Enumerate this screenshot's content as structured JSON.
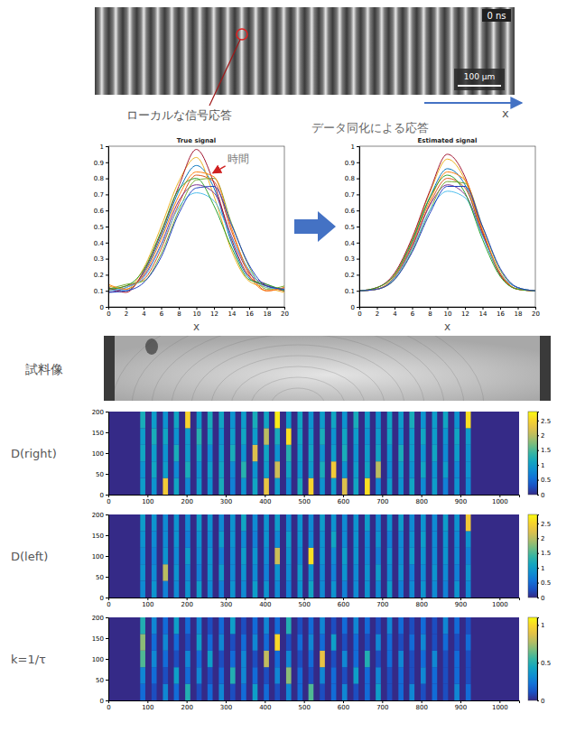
{
  "figure": {
    "stripe_image": {
      "time_label": "0 ns",
      "scale_label": "100 μm"
    },
    "local_label": "ローカルな信号応答",
    "assim_label": "データ同化による応答",
    "x_arrow_label": "x",
    "sample_label": "試料像"
  },
  "chart_data": [
    {
      "type": "line",
      "title": "True signal",
      "xlabel": "x",
      "x": [
        0,
        2,
        4,
        6,
        8,
        10,
        12,
        14,
        16,
        18,
        20
      ],
      "xlim": [
        0,
        20
      ],
      "xticks": [
        0,
        2,
        4,
        6,
        8,
        10,
        12,
        14,
        16,
        18,
        20
      ],
      "ylim": [
        0,
        1
      ],
      "yticks": [
        0,
        0.1,
        0.2,
        0.3,
        0.4,
        0.5,
        0.6,
        0.7,
        0.8,
        0.9,
        1
      ],
      "annotations": [
        "時間"
      ],
      "series": [
        {
          "color": "#0072bd",
          "values": [
            0.12,
            0.1,
            0.21,
            0.44,
            0.72,
            0.88,
            0.74,
            0.4,
            0.18,
            0.13,
            0.11
          ]
        },
        {
          "color": "#d95319",
          "values": [
            0.1,
            0.13,
            0.17,
            0.36,
            0.64,
            0.82,
            0.78,
            0.47,
            0.22,
            0.1,
            0.12
          ]
        },
        {
          "color": "#edb120",
          "values": [
            0.13,
            0.11,
            0.24,
            0.5,
            0.78,
            0.93,
            0.69,
            0.35,
            0.16,
            0.12,
            0.09
          ]
        },
        {
          "color": "#7e2f8e",
          "values": [
            0.09,
            0.12,
            0.19,
            0.39,
            0.66,
            0.76,
            0.71,
            0.44,
            0.21,
            0.14,
            0.1
          ]
        },
        {
          "color": "#77ac30",
          "values": [
            0.11,
            0.14,
            0.16,
            0.33,
            0.6,
            0.79,
            0.8,
            0.52,
            0.25,
            0.11,
            0.13
          ]
        },
        {
          "color": "#a2142f",
          "values": [
            0.12,
            0.09,
            0.22,
            0.46,
            0.75,
            0.98,
            0.77,
            0.42,
            0.19,
            0.13,
            0.1
          ]
        },
        {
          "color": "#4dbeee",
          "values": [
            0.1,
            0.12,
            0.18,
            0.38,
            0.62,
            0.71,
            0.66,
            0.43,
            0.23,
            0.12,
            0.11
          ]
        },
        {
          "color": "#ff7f0e",
          "values": [
            0.14,
            0.11,
            0.2,
            0.42,
            0.69,
            0.84,
            0.81,
            0.49,
            0.2,
            0.1,
            0.12
          ]
        },
        {
          "color": "#2ca02c",
          "values": [
            0.11,
            0.13,
            0.23,
            0.47,
            0.73,
            0.8,
            0.63,
            0.37,
            0.17,
            0.14,
            0.1
          ]
        },
        {
          "color": "#1f3fbf",
          "values": [
            0.09,
            0.1,
            0.15,
            0.31,
            0.58,
            0.74,
            0.75,
            0.51,
            0.26,
            0.13,
            0.11
          ]
        }
      ]
    },
    {
      "type": "line",
      "title": "Estimated signal",
      "xlabel": "x",
      "x": [
        0,
        2,
        4,
        6,
        8,
        10,
        12,
        14,
        16,
        18,
        20
      ],
      "xlim": [
        0,
        20
      ],
      "xticks": [
        0,
        2,
        4,
        6,
        8,
        10,
        12,
        14,
        16,
        18,
        20
      ],
      "ylim": [
        0,
        1
      ],
      "yticks": [
        0,
        0.1,
        0.2,
        0.3,
        0.4,
        0.5,
        0.6,
        0.7,
        0.8,
        0.9,
        1
      ],
      "series": [
        {
          "color": "#0072bd",
          "values": [
            0.1,
            0.11,
            0.19,
            0.4,
            0.68,
            0.86,
            0.76,
            0.45,
            0.2,
            0.11,
            0.1
          ]
        },
        {
          "color": "#d95319",
          "values": [
            0.1,
            0.11,
            0.18,
            0.37,
            0.64,
            0.8,
            0.74,
            0.46,
            0.21,
            0.11,
            0.1
          ]
        },
        {
          "color": "#edb120",
          "values": [
            0.1,
            0.12,
            0.2,
            0.42,
            0.71,
            0.92,
            0.79,
            0.46,
            0.2,
            0.11,
            0.1
          ]
        },
        {
          "color": "#7e2f8e",
          "values": [
            0.1,
            0.11,
            0.18,
            0.38,
            0.63,
            0.76,
            0.7,
            0.45,
            0.21,
            0.12,
            0.1
          ]
        },
        {
          "color": "#77ac30",
          "values": [
            0.1,
            0.11,
            0.17,
            0.35,
            0.6,
            0.78,
            0.77,
            0.5,
            0.23,
            0.12,
            0.1
          ]
        },
        {
          "color": "#a2142f",
          "values": [
            0.1,
            0.12,
            0.21,
            0.43,
            0.72,
            0.95,
            0.81,
            0.47,
            0.2,
            0.11,
            0.1
          ]
        },
        {
          "color": "#4dbeee",
          "values": [
            0.1,
            0.11,
            0.18,
            0.36,
            0.6,
            0.72,
            0.68,
            0.44,
            0.21,
            0.12,
            0.1
          ]
        },
        {
          "color": "#ff7f0e",
          "values": [
            0.1,
            0.11,
            0.19,
            0.39,
            0.66,
            0.84,
            0.79,
            0.48,
            0.21,
            0.11,
            0.1
          ]
        },
        {
          "color": "#2ca02c",
          "values": [
            0.1,
            0.12,
            0.2,
            0.41,
            0.68,
            0.82,
            0.71,
            0.42,
            0.19,
            0.11,
            0.1
          ]
        },
        {
          "color": "#1f3fbf",
          "values": [
            0.1,
            0.11,
            0.17,
            0.34,
            0.58,
            0.75,
            0.75,
            0.5,
            0.24,
            0.12,
            0.1
          ]
        }
      ]
    },
    {
      "type": "heatmap",
      "title": "D(right)",
      "x": [
        88,
        117,
        146,
        174,
        203,
        232,
        260,
        289,
        318,
        346,
        375,
        404,
        432,
        461,
        490,
        518,
        547,
        576,
        604,
        633,
        662,
        690,
        719,
        748,
        776,
        805,
        834,
        862,
        891,
        920
      ],
      "y_edges": [
        0,
        40,
        80,
        120,
        160,
        200
      ],
      "xlim": [
        0,
        1050
      ],
      "xticks": [
        0,
        100,
        200,
        300,
        400,
        500,
        600,
        700,
        800,
        900,
        1000
      ],
      "ylim": [
        0,
        200
      ],
      "yticks": [
        0,
        50,
        100,
        150,
        200
      ],
      "colorbar": {
        "range": [
          0,
          2.8
        ],
        "ticks": [
          0,
          0.5,
          1,
          1.5,
          2,
          2.5
        ]
      },
      "cells": [
        [
          1.0,
          0.9,
          2.4,
          1.1,
          0.8,
          1.0,
          0.9,
          1.2,
          0.7,
          0.9,
          1.1,
          2.3,
          1.0,
          0.8,
          1.2,
          2.5,
          0.9,
          1.0,
          2.2,
          1.1,
          2.6,
          0.8,
          1.0,
          0.9,
          1.1,
          0.8,
          1.0,
          0.7,
          0.9,
          0.8
        ],
        [
          0.9,
          1.1,
          1.0,
          0.8,
          1.2,
          0.9,
          1.0,
          1.1,
          0.8,
          1.3,
          0.9,
          1.0,
          2.1,
          1.1,
          0.9,
          1.0,
          1.2,
          2.4,
          0.9,
          1.0,
          1.1,
          2.0,
          0.8,
          1.0,
          0.9,
          1.1,
          0.9,
          1.0,
          0.8,
          0.9
        ],
        [
          1.1,
          1.0,
          0.9,
          1.2,
          1.0,
          1.1,
          0.8,
          1.0,
          1.2,
          0.9,
          2.2,
          1.1,
          0.9,
          1.3,
          1.0,
          1.1,
          0.9,
          1.0,
          1.2,
          0.9,
          1.0,
          1.1,
          0.9,
          1.2,
          1.0,
          0.9,
          1.1,
          0.8,
          1.0,
          0.9
        ],
        [
          1.0,
          1.2,
          1.1,
          0.9,
          1.0,
          1.3,
          1.1,
          0.9,
          1.0,
          1.1,
          1.0,
          2.0,
          1.2,
          2.6,
          1.1,
          1.0,
          1.2,
          0.9,
          1.1,
          1.0,
          0.9,
          1.0,
          1.1,
          0.9,
          1.0,
          1.1,
          1.0,
          0.9,
          1.1,
          1.0
        ],
        [
          1.2,
          1.0,
          0.9,
          1.1,
          2.5,
          1.0,
          1.2,
          1.1,
          0.9,
          1.0,
          1.2,
          1.1,
          2.7,
          1.0,
          1.1,
          0.9,
          1.0,
          1.1,
          0.9,
          1.2,
          1.0,
          0.9,
          1.1,
          1.0,
          1.2,
          0.9,
          1.0,
          1.1,
          0.9,
          2.6
        ]
      ]
    },
    {
      "type": "heatmap",
      "title": "D(left)",
      "x": [
        88,
        117,
        146,
        174,
        203,
        232,
        260,
        289,
        318,
        346,
        375,
        404,
        432,
        461,
        490,
        518,
        547,
        576,
        604,
        633,
        662,
        690,
        719,
        748,
        776,
        805,
        834,
        862,
        891,
        920
      ],
      "y_edges": [
        0,
        40,
        80,
        120,
        160,
        200
      ],
      "xlim": [
        0,
        1050
      ],
      "xticks": [
        0,
        100,
        200,
        300,
        400,
        500,
        600,
        700,
        800,
        900,
        1000
      ],
      "ylim": [
        0,
        200
      ],
      "yticks": [
        0,
        50,
        100,
        150,
        200
      ],
      "colorbar": {
        "range": [
          0,
          2.8
        ],
        "ticks": [
          0,
          0.5,
          1,
          1.5,
          2,
          2.5
        ]
      },
      "cells": [
        [
          0.8,
          0.9,
          0.7,
          0.8,
          0.9,
          1.0,
          0.8,
          0.7,
          0.9,
          0.8,
          1.0,
          0.9,
          0.8,
          0.7,
          0.9,
          1.1,
          0.8,
          0.9,
          0.7,
          0.8,
          0.9,
          0.8,
          1.0,
          0.7,
          0.8,
          0.9,
          0.8,
          0.7,
          0.9,
          0.8
        ],
        [
          0.9,
          0.8,
          2.0,
          0.9,
          0.8,
          0.7,
          0.9,
          1.0,
          0.8,
          0.9,
          0.8,
          0.7,
          0.9,
          0.8,
          1.0,
          0.9,
          0.8,
          0.7,
          0.9,
          0.8,
          0.9,
          1.0,
          0.8,
          0.9,
          0.7,
          0.8,
          0.9,
          0.8,
          0.7,
          0.9
        ],
        [
          0.8,
          0.7,
          0.9,
          0.8,
          1.0,
          0.8,
          0.9,
          0.7,
          0.8,
          1.0,
          0.9,
          0.8,
          2.1,
          0.9,
          0.8,
          2.6,
          0.9,
          0.8,
          1.0,
          0.9,
          0.8,
          0.7,
          0.9,
          0.8,
          1.0,
          0.9,
          0.8,
          0.9,
          0.8,
          0.7
        ],
        [
          0.9,
          0.8,
          0.8,
          0.9,
          0.7,
          0.9,
          0.8,
          1.0,
          0.9,
          0.8,
          0.7,
          0.9,
          0.8,
          1.0,
          0.9,
          0.8,
          0.9,
          1.1,
          0.8,
          0.9,
          0.8,
          0.9,
          0.7,
          0.8,
          0.9,
          1.0,
          0.8,
          0.9,
          0.8,
          0.9
        ],
        [
          1.0,
          0.9,
          0.8,
          0.9,
          0.8,
          1.0,
          0.9,
          0.8,
          0.9,
          1.1,
          0.8,
          0.9,
          1.0,
          0.8,
          0.9,
          0.8,
          1.0,
          0.9,
          0.8,
          0.9,
          1.0,
          0.8,
          0.9,
          1.0,
          0.8,
          0.9,
          0.8,
          1.0,
          0.9,
          2.4
        ]
      ]
    },
    {
      "type": "heatmap",
      "title": "k=1/τ",
      "x": [
        88,
        117,
        146,
        174,
        203,
        232,
        260,
        289,
        318,
        346,
        375,
        404,
        432,
        461,
        490,
        518,
        547,
        576,
        604,
        633,
        662,
        690,
        719,
        748,
        776,
        805,
        834,
        862,
        891,
        920
      ],
      "y_edges": [
        0,
        40,
        80,
        120,
        160,
        200
      ],
      "xlim": [
        0,
        1050
      ],
      "xticks": [
        0,
        100,
        200,
        300,
        400,
        500,
        600,
        700,
        800,
        900,
        1000
      ],
      "ylim": [
        0,
        200
      ],
      "yticks": [
        0,
        50,
        100,
        150,
        200
      ],
      "colorbar": {
        "range": [
          0,
          1.1
        ],
        "ticks": [
          0,
          0.5,
          1
        ]
      },
      "cells": [
        [
          0.2,
          0.1,
          0.3,
          0.2,
          0.5,
          0.1,
          0.2,
          0.3,
          0.1,
          0.2,
          0.4,
          0.2,
          0.1,
          0.3,
          0.2,
          0.6,
          0.1,
          0.2,
          0.3,
          0.1,
          0.2,
          0.4,
          0.1,
          0.2,
          0.3,
          0.1,
          0.2,
          0.1,
          0.3,
          0.2
        ],
        [
          0.3,
          0.2,
          0.1,
          0.4,
          0.2,
          0.3,
          0.1,
          0.2,
          0.5,
          0.3,
          0.2,
          0.1,
          0.3,
          0.7,
          0.2,
          0.1,
          0.3,
          0.2,
          0.1,
          0.4,
          0.2,
          0.3,
          0.1,
          0.2,
          0.1,
          0.3,
          0.2,
          0.1,
          0.2,
          0.1
        ],
        [
          0.6,
          0.3,
          0.2,
          0.1,
          0.3,
          0.2,
          0.4,
          0.1,
          0.2,
          0.3,
          0.1,
          0.8,
          0.2,
          0.3,
          0.1,
          0.2,
          0.9,
          0.1,
          0.3,
          0.2,
          0.5,
          0.1,
          0.2,
          0.3,
          0.1,
          0.2,
          0.3,
          0.1,
          0.2,
          0.1
        ],
        [
          0.7,
          0.2,
          0.3,
          0.2,
          0.1,
          0.4,
          0.2,
          0.3,
          0.1,
          0.2,
          0.3,
          0.2,
          1.0,
          0.1,
          0.2,
          0.3,
          0.2,
          0.4,
          0.1,
          0.2,
          0.1,
          0.3,
          0.2,
          0.1,
          0.2,
          0.3,
          0.1,
          0.2,
          0.1,
          0.2
        ],
        [
          0.5,
          0.3,
          0.2,
          0.4,
          0.2,
          0.3,
          0.1,
          0.2,
          0.4,
          0.1,
          0.2,
          0.3,
          0.2,
          0.5,
          0.1,
          0.2,
          0.3,
          0.1,
          0.2,
          0.3,
          0.2,
          0.1,
          0.3,
          0.2,
          0.1,
          0.2,
          0.1,
          0.3,
          0.2,
          0.1
        ]
      ]
    }
  ]
}
